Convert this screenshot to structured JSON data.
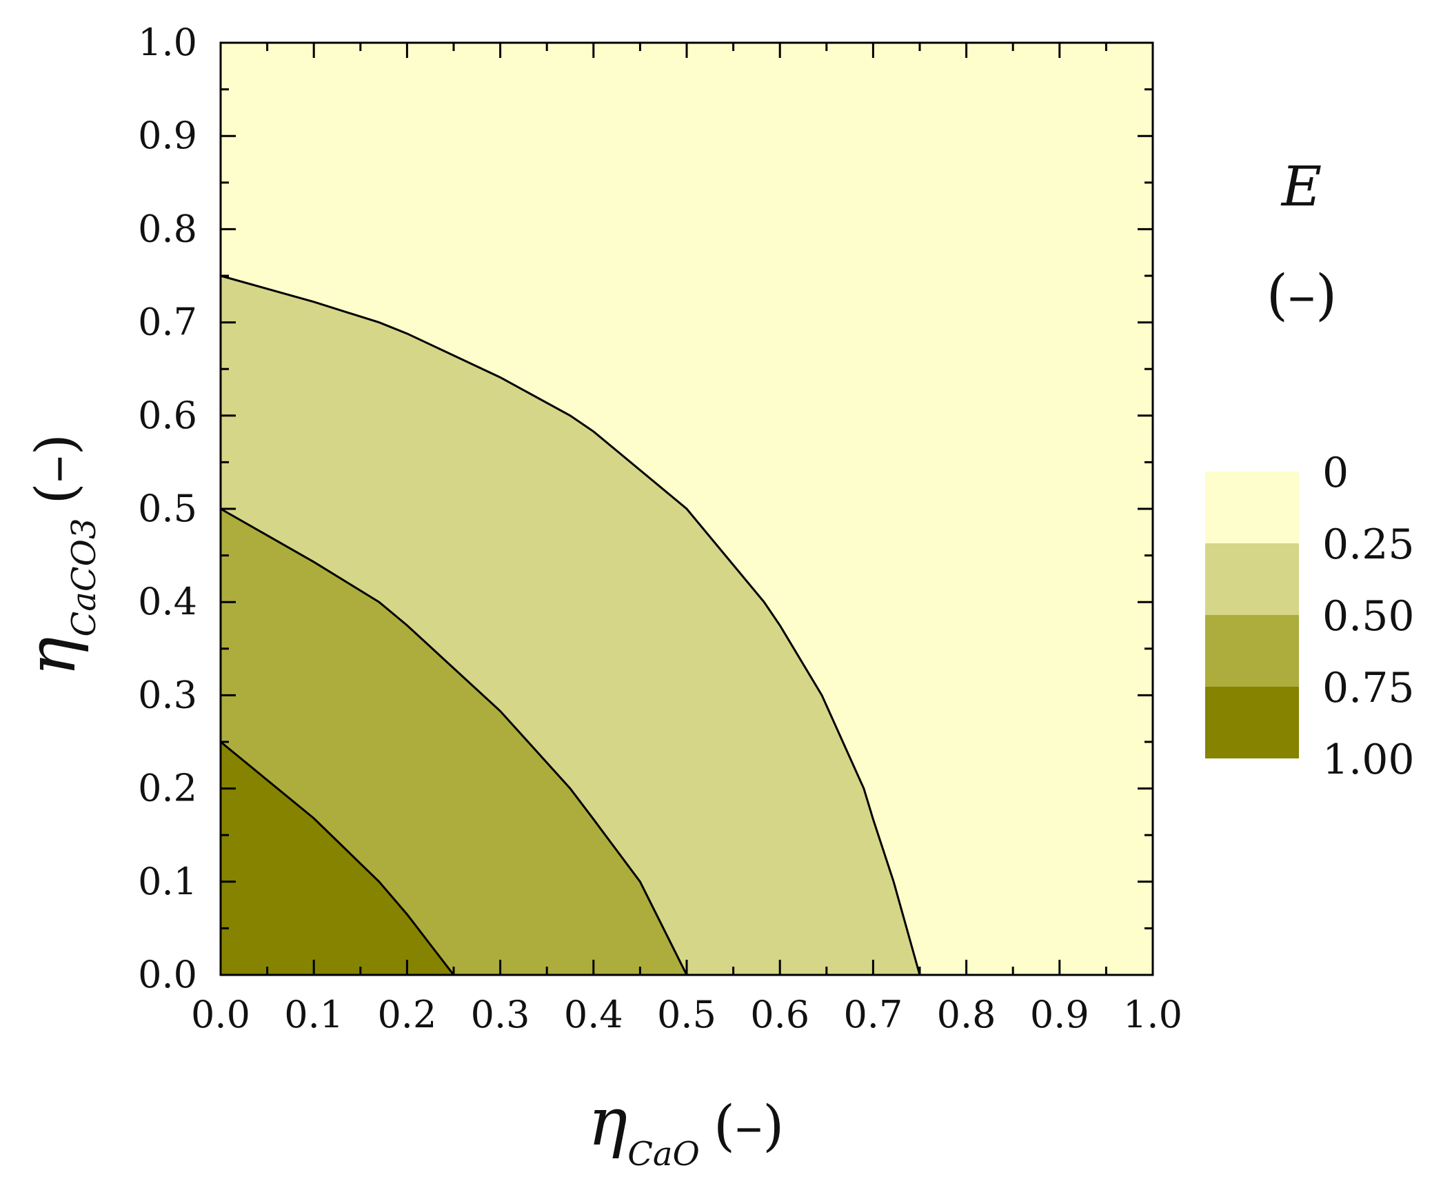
{
  "chart_data": {
    "type": "contour",
    "xlabel": {
      "symbol": "η",
      "subscript": "CaO",
      "unit": "(–)"
    },
    "ylabel": {
      "symbol": "η",
      "subscript": "CaCO3",
      "unit": "(–)"
    },
    "xlim": [
      0.0,
      1.0
    ],
    "ylim": [
      0.0,
      1.0
    ],
    "xticks": [
      "0.0",
      "0.1",
      "0.2",
      "0.3",
      "0.4",
      "0.5",
      "0.6",
      "0.7",
      "0.8",
      "0.9",
      "1.0"
    ],
    "yticks": [
      "0.0",
      "0.1",
      "0.2",
      "0.3",
      "0.4",
      "0.5",
      "0.6",
      "0.7",
      "0.8",
      "0.9",
      "1.0"
    ],
    "grid": false,
    "colorbar": {
      "title": "E",
      "unit": "(–)",
      "labels": [
        "0",
        "0.25",
        "0.50",
        "0.75",
        "1.00"
      ],
      "levels": [
        {
          "range": [
            0,
            0.25
          ],
          "color": "#FDFECB"
        },
        {
          "range": [
            0.25,
            0.5
          ],
          "color": "#D5D688"
        },
        {
          "range": [
            0.5,
            0.75
          ],
          "color": "#ADAD3D"
        },
        {
          "range": [
            0.75,
            1.0
          ],
          "color": "#858300"
        }
      ]
    },
    "contours": [
      {
        "level": 0.75,
        "points": [
          [
            0,
            0.25
          ],
          [
            0.1,
            0.168
          ],
          [
            0.17,
            0.1
          ],
          [
            0.2,
            0.065
          ],
          [
            0.25,
            0
          ]
        ]
      },
      {
        "level": 0.5,
        "points": [
          [
            0,
            0.5
          ],
          [
            0.1,
            0.443
          ],
          [
            0.17,
            0.4
          ],
          [
            0.2,
            0.375
          ],
          [
            0.3,
            0.283
          ],
          [
            0.375,
            0.2
          ],
          [
            0.4,
            0.167
          ],
          [
            0.45,
            0.1
          ],
          [
            0.5,
            0
          ]
        ]
      },
      {
        "level": 0.25,
        "points": [
          [
            0,
            0.75
          ],
          [
            0.1,
            0.722
          ],
          [
            0.17,
            0.7
          ],
          [
            0.2,
            0.688
          ],
          [
            0.3,
            0.641
          ],
          [
            0.375,
            0.6
          ],
          [
            0.4,
            0.583
          ],
          [
            0.5,
            0.5
          ],
          [
            0.583,
            0.4
          ],
          [
            0.6,
            0.375
          ],
          [
            0.645,
            0.3
          ],
          [
            0.69,
            0.2
          ],
          [
            0.7,
            0.167
          ],
          [
            0.722,
            0.1
          ],
          [
            0.75,
            0
          ]
        ]
      }
    ]
  }
}
